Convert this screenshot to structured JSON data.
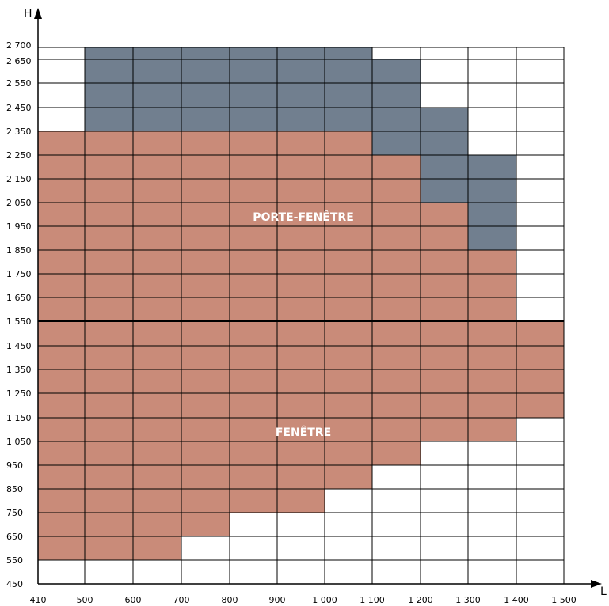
{
  "chart_data": {
    "type": "heatmap",
    "title": "",
    "xlabel": "L",
    "ylabel": "H",
    "x_edges": [
      410,
      500,
      600,
      700,
      800,
      900,
      1000,
      1100,
      1200,
      1300,
      1400,
      1500
    ],
    "y_edges": [
      450,
      550,
      650,
      750,
      850,
      950,
      1050,
      1150,
      1250,
      1350,
      1450,
      1550,
      1650,
      1750,
      1850,
      1950,
      2050,
      2150,
      2250,
      2350,
      2450,
      2550,
      2650,
      2700
    ],
    "x_tick_labels": [
      "410",
      "500",
      "600",
      "700",
      "800",
      "900",
      "1 000",
      "1 100",
      "1 200",
      "1 300",
      "1 400",
      "1 500"
    ],
    "y_tick_labels": [
      "450",
      "550",
      "650",
      "750",
      "850",
      "950",
      "1 050",
      "1 150",
      "1 250",
      "1 350",
      "1 450",
      "1 550",
      "1 650",
      "1 750",
      "1 850",
      "1 950",
      "2 050",
      "2 150",
      "2 250",
      "2 350",
      "2 450",
      "2 550",
      "2 650",
      "2 700"
    ],
    "xlim": [
      410,
      1500
    ],
    "ylim": [
      450,
      2700
    ],
    "grid": true,
    "divider_y": 1550,
    "colors": {
      "salmon": "#c98b79",
      "slate": "#717f8f",
      "white": "#ffffff",
      "grid": "#000000"
    },
    "regions": [
      {
        "label": "PORTE-FENÊTRE",
        "label_at": [
          955,
          1990
        ]
      },
      {
        "label": "FENÊTRE",
        "label_at": [
          955,
          1090
        ]
      }
    ],
    "columns": [
      {
        "x_range": [
          410,
          500
        ],
        "salmon_to": 2350,
        "slate_to": 2350
      },
      {
        "x_range": [
          500,
          600
        ],
        "salmon_to": 2350,
        "slate_to": 2700
      },
      {
        "x_range": [
          600,
          700
        ],
        "salmon_to": 2350,
        "slate_to": 2700
      },
      {
        "x_range": [
          700,
          800
        ],
        "salmon_to": 2350,
        "slate_to": 2700
      },
      {
        "x_range": [
          800,
          900
        ],
        "salmon_to": 2350,
        "slate_to": 2700
      },
      {
        "x_range": [
          900,
          1000
        ],
        "salmon_to": 2350,
        "slate_to": 2700
      },
      {
        "x_range": [
          1000,
          1100
        ],
        "salmon_to": 2350,
        "slate_to": 2700
      },
      {
        "x_range": [
          1100,
          1200
        ],
        "salmon_to": 2250,
        "slate_to": 2650
      },
      {
        "x_range": [
          1200,
          1300
        ],
        "salmon_to": 2050,
        "slate_to": 2450
      },
      {
        "x_range": [
          1300,
          1400
        ],
        "salmon_to": 1850,
        "slate_to": 2250
      },
      {
        "x_range": [
          1400,
          1500
        ],
        "salmon_to": 1550,
        "slate_to": 1550
      }
    ],
    "bottom_steps": [
      {
        "x_range": [
          410,
          700
        ],
        "salmon_from": 550
      },
      {
        "x_range": [
          700,
          800
        ],
        "salmon_from": 650
      },
      {
        "x_range": [
          800,
          1000
        ],
        "salmon_from": 750
      },
      {
        "x_range": [
          1000,
          1100
        ],
        "salmon_from": 850
      },
      {
        "x_range": [
          1100,
          1200
        ],
        "salmon_from": 950
      },
      {
        "x_range": [
          1200,
          1400
        ],
        "salmon_from": 1050
      },
      {
        "x_range": [
          1400,
          1500
        ],
        "salmon_from": 1150
      }
    ]
  }
}
